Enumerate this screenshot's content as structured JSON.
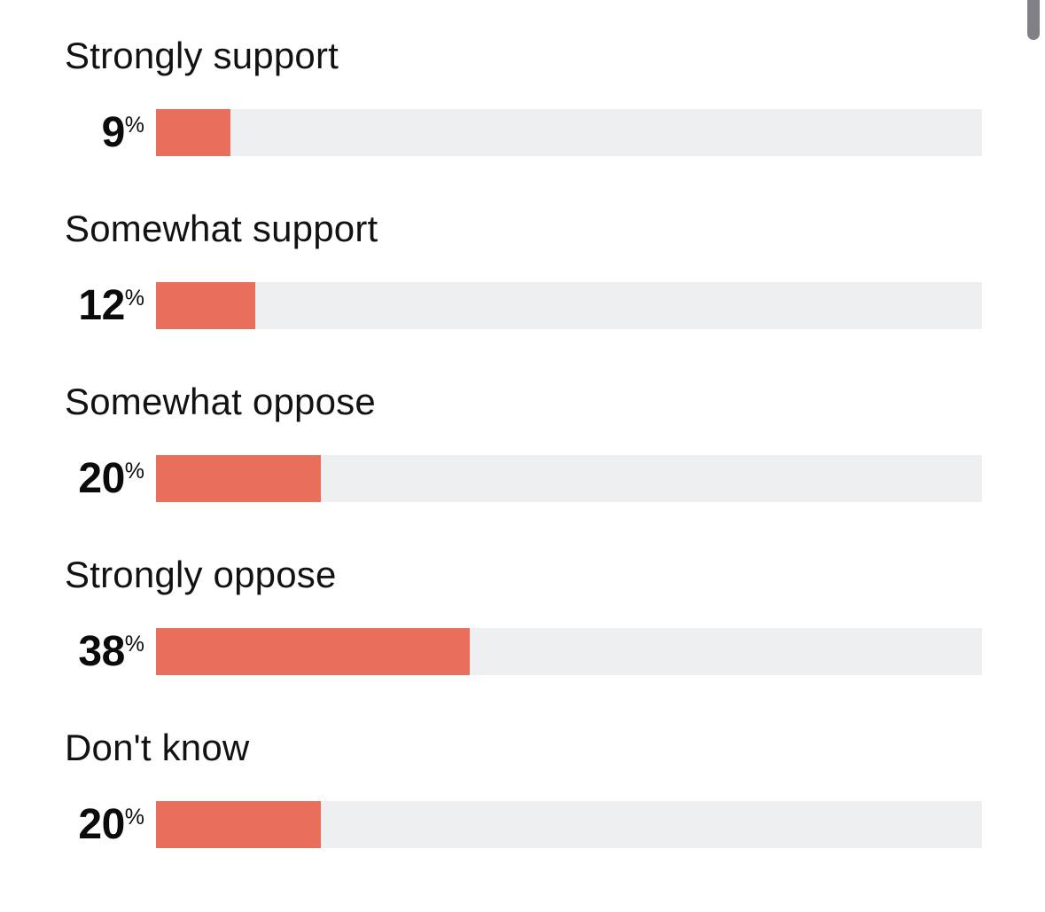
{
  "colors": {
    "bar": "#e96f5c",
    "track": "#edeff1",
    "text": "#121212",
    "thumb": "#7f8184"
  },
  "scrollbar": {
    "thumb_color": "#7f8184"
  },
  "chart_data": {
    "type": "bar",
    "orientation": "horizontal",
    "title": "",
    "categories": [
      "Strongly support",
      "Somewhat support",
      "Somewhat oppose",
      "Strongly oppose",
      "Don't know"
    ],
    "values": [
      9,
      12,
      20,
      38,
      20
    ],
    "unit": "%",
    "xlim": [
      0,
      100
    ],
    "grid": false,
    "legend": false,
    "bar_color": "#e96f5c",
    "track_color": "#edeff1"
  },
  "rows": [
    {
      "label": "Strongly support",
      "value": "9",
      "unit": "%",
      "pct": 9
    },
    {
      "label": "Somewhat support",
      "value": "12",
      "unit": "%",
      "pct": 12
    },
    {
      "label": "Somewhat oppose",
      "value": "20",
      "unit": "%",
      "pct": 20
    },
    {
      "label": "Strongly oppose",
      "value": "38",
      "unit": "%",
      "pct": 38
    },
    {
      "label": "Don't know",
      "value": "20",
      "unit": "%",
      "pct": 20
    }
  ]
}
